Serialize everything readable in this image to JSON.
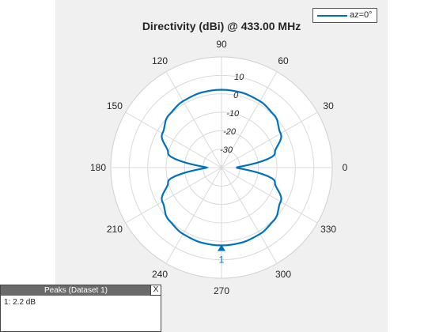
{
  "chart_data": {
    "type": "polar-line",
    "title": "Directivity (dBi) @ 433.00 MHz",
    "angle_ticks": [
      "0",
      "30",
      "60",
      "90",
      "120",
      "150",
      "180",
      "210",
      "240",
      "270",
      "300",
      "330"
    ],
    "radial_ticks": [
      "-30",
      "-20",
      "-10",
      "0",
      "10"
    ],
    "rlim": [
      -40,
      20
    ],
    "grid": true,
    "legend_position": "top-right",
    "series": [
      {
        "name": "az=0°",
        "color": "#0072bd",
        "angles_deg": [
          0,
          15,
          30,
          45,
          60,
          75,
          90,
          105,
          120,
          135,
          150,
          165,
          180,
          195,
          210,
          225,
          240,
          255,
          270,
          285,
          300,
          315,
          330,
          345,
          360
        ],
        "values_dbi": [
          -32,
          -10,
          -3,
          0.3,
          1.6,
          2.1,
          2.2,
          2.1,
          1.6,
          0.3,
          -3,
          -10,
          -32,
          -10,
          -3,
          0.3,
          1.6,
          2.1,
          2.2,
          2.1,
          1.6,
          0.3,
          -3,
          -10,
          -32
        ]
      }
    ],
    "peak_marker": {
      "angle_deg": 270,
      "label": "1"
    }
  },
  "peaks": {
    "title": "Peaks (Dataset 1)",
    "close_label": "X",
    "rows": [
      "1: 2.2 dB"
    ]
  }
}
